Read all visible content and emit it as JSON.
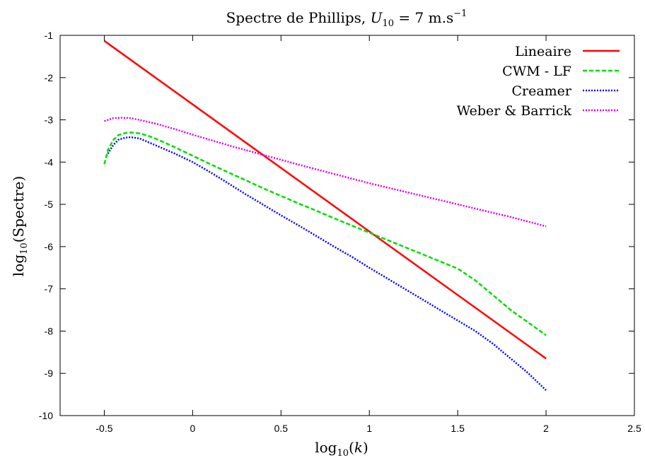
{
  "chart_data": {
    "type": "line",
    "title_text": "Spectre de Phillips, ",
    "title_var": "U",
    "title_var_sub": "10",
    "title_eq": " = 7 m.s",
    "title_exp": "−1",
    "xlabel_log": "log",
    "xlabel_sub": "10",
    "xlabel_arg": "k",
    "ylabel_log": "log",
    "ylabel_sub": "10",
    "ylabel_arg": "(Spectre)",
    "xlim": [
      -0.75,
      2.5
    ],
    "ylim": [
      -10,
      -1
    ],
    "x_ticks": [
      -0.5,
      0,
      0.5,
      1,
      1.5,
      2,
      2.5
    ],
    "x_tick_labels": [
      "-0.5",
      "0",
      "0.5",
      "1",
      "1.5",
      "2",
      "2.5"
    ],
    "y_ticks": [
      -1,
      -2,
      -3,
      -4,
      -5,
      -6,
      -7,
      -8,
      -9,
      -10
    ],
    "y_tick_labels": [
      "-1",
      "-2",
      "-3",
      "-4",
      "-5",
      "-6",
      "-7",
      "-8",
      "-9",
      "-10"
    ],
    "legend_position": "top-right",
    "grid": false,
    "series": [
      {
        "name": "Lineaire",
        "color": "#ff0000",
        "dash": "solid",
        "x": [
          -0.5,
          2.0
        ],
        "y": [
          -1.13,
          -8.65
        ]
      },
      {
        "name": "CWM - LF",
        "color": "#00dd00",
        "dash": "dashed",
        "x": [
          -0.5,
          -0.48,
          -0.45,
          -0.42,
          -0.38,
          -0.35,
          -0.3,
          -0.25,
          -0.2,
          -0.1,
          0.0,
          0.1,
          0.2,
          0.3,
          0.4,
          0.5,
          0.6,
          0.7,
          0.8,
          0.9,
          1.0,
          1.1,
          1.2,
          1.3,
          1.4,
          1.5,
          1.6,
          1.7,
          1.8,
          1.9,
          2.0
        ],
        "y": [
          -4.05,
          -3.72,
          -3.48,
          -3.36,
          -3.31,
          -3.3,
          -3.32,
          -3.38,
          -3.46,
          -3.65,
          -3.85,
          -4.05,
          -4.24,
          -4.43,
          -4.62,
          -4.8,
          -4.98,
          -5.15,
          -5.33,
          -5.5,
          -5.67,
          -5.84,
          -6.01,
          -6.18,
          -6.35,
          -6.52,
          -6.8,
          -7.15,
          -7.5,
          -7.8,
          -8.1
        ]
      },
      {
        "name": "Creamer",
        "color": "#0000ee",
        "dash": "dotted",
        "x": [
          -0.48,
          -0.45,
          -0.42,
          -0.38,
          -0.35,
          -0.3,
          -0.25,
          -0.2,
          -0.1,
          0.0,
          0.1,
          0.2,
          0.3,
          0.4,
          0.5,
          0.6,
          0.7,
          0.8,
          0.9,
          1.0,
          1.1,
          1.2,
          1.3,
          1.4,
          1.5,
          1.6,
          1.7,
          1.8,
          1.9,
          2.0
        ],
        "y": [
          -3.8,
          -3.6,
          -3.47,
          -3.42,
          -3.41,
          -3.44,
          -3.53,
          -3.62,
          -3.8,
          -4.0,
          -4.24,
          -4.5,
          -4.76,
          -5.01,
          -5.26,
          -5.5,
          -5.75,
          -6.0,
          -6.24,
          -6.5,
          -6.75,
          -7.0,
          -7.25,
          -7.5,
          -7.75,
          -8.0,
          -8.3,
          -8.65,
          -9.0,
          -9.4
        ]
      },
      {
        "name": "Weber & Barrick",
        "color": "#dd00dd",
        "dash": "dotted",
        "x": [
          -0.5,
          -0.45,
          -0.4,
          -0.35,
          -0.3,
          -0.2,
          -0.1,
          0.0,
          0.2,
          0.4,
          0.6,
          0.8,
          1.0,
          1.2,
          1.4,
          1.6,
          1.8,
          2.0
        ],
        "y": [
          -3.03,
          -2.96,
          -2.95,
          -2.96,
          -3.0,
          -3.1,
          -3.22,
          -3.35,
          -3.6,
          -3.83,
          -4.06,
          -4.28,
          -4.5,
          -4.7,
          -4.9,
          -5.1,
          -5.3,
          -5.52
        ]
      }
    ]
  }
}
